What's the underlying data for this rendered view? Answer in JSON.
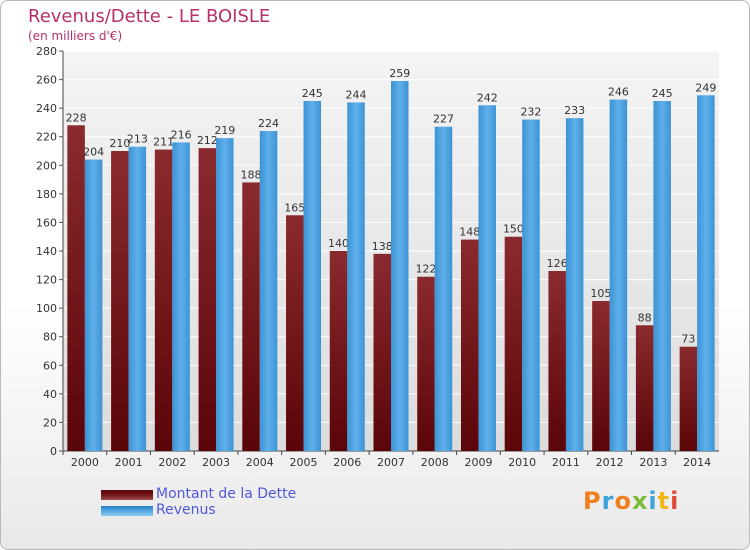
{
  "header": {
    "title": "Revenus/Dette - LE BOISLE",
    "subtitle": "(en milliers d'€)"
  },
  "legend": {
    "items": [
      {
        "label": "Montant de la Dette",
        "color": "#6b0f12"
      },
      {
        "label": "Revenus",
        "color": "#4aa3e0"
      }
    ]
  },
  "logo": {
    "text": "Proxiti",
    "letters": [
      {
        "ch": "P",
        "color": "#f07f1d"
      },
      {
        "ch": "r",
        "color": "#3ea2dc"
      },
      {
        "ch": "o",
        "color": "#f07f1d"
      },
      {
        "ch": "x",
        "color": "#7bbd3a"
      },
      {
        "ch": "i",
        "color": "#3ea2dc"
      },
      {
        "ch": "t",
        "color": "#f2b51c"
      },
      {
        "ch": "i",
        "color": "#e04a35"
      }
    ]
  },
  "chart_data": {
    "type": "bar",
    "title": "Revenus/Dette - LE BOISLE",
    "subtitle": "(en milliers d'€)",
    "categories": [
      "2000",
      "2001",
      "2002",
      "2003",
      "2004",
      "2005",
      "2006",
      "2007",
      "2008",
      "2009",
      "2010",
      "2011",
      "2012",
      "2013",
      "2014"
    ],
    "series": [
      {
        "name": "Montant de la Dette",
        "color": "#6b0f12",
        "values": [
          228,
          210,
          211,
          212,
          188,
          165,
          140,
          138,
          122,
          148,
          150,
          126,
          105,
          88,
          73
        ],
        "labels": [
          "228",
          "210",
          "211",
          "212",
          "188",
          "165",
          "140",
          "138",
          "122",
          "148",
          "150",
          "126",
          "105",
          "88",
          "73"
        ]
      },
      {
        "name": "Revenus",
        "color": "#4aa3e0",
        "values": [
          204,
          213,
          216,
          219,
          224,
          245,
          244,
          259,
          227,
          242,
          232,
          233,
          246,
          245,
          249
        ],
        "labels": [
          "204",
          "213",
          "216",
          "219",
          "224",
          "245",
          "244",
          "259",
          "227",
          "242",
          "232",
          "233",
          "246",
          "245",
          "249"
        ]
      }
    ],
    "ylim": [
      0,
      280
    ],
    "yticks": [
      0,
      20,
      40,
      60,
      80,
      100,
      120,
      140,
      160,
      180,
      200,
      220,
      240,
      260,
      280
    ],
    "grid": true,
    "legend_position": "bottom-left"
  }
}
